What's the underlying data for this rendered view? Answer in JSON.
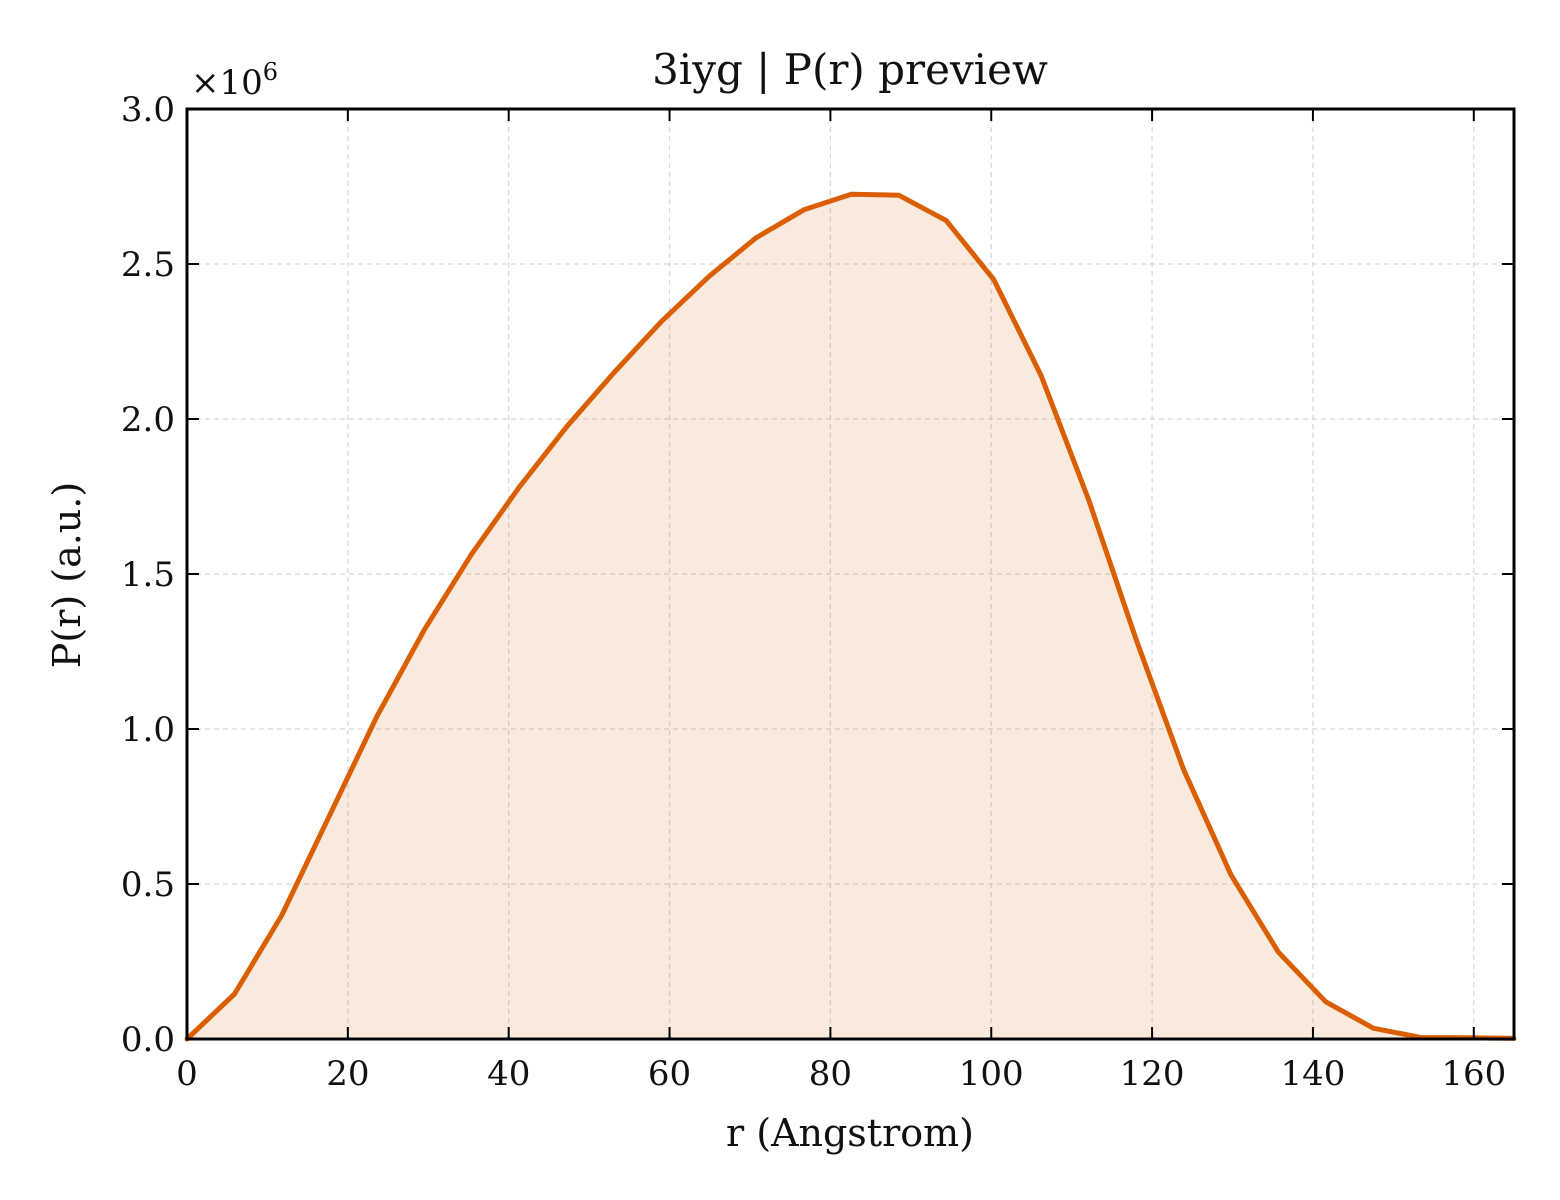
{
  "chart_data": {
    "type": "area",
    "title": "3iyg | P(r) preview",
    "xlabel": "r (Angstrom)",
    "ylabel": "P(r) (a.u.)",
    "y_multiplier_label": "×10",
    "y_multiplier_exp": "6",
    "y_scale": 1000000,
    "xlim": [
      0,
      165
    ],
    "ylim": [
      0,
      3000000
    ],
    "xticks": [
      0,
      20,
      40,
      60,
      80,
      100,
      120,
      140,
      160
    ],
    "xtick_labels": [
      "0",
      "20",
      "40",
      "60",
      "80",
      "100",
      "120",
      "140",
      "160"
    ],
    "yticks": [
      0,
      500000,
      1000000,
      1500000,
      2000000,
      2500000,
      3000000
    ],
    "ytick_labels": [
      "0.0",
      "0.5",
      "1.0",
      "1.5",
      "2.0",
      "2.5",
      "3.0"
    ],
    "grid": true,
    "legend": "none",
    "series": [
      {
        "color": "#d95f02",
        "fill_color": "#d95f02",
        "fill_opacity": 0.13,
        "x": [
          0,
          5.9,
          11.8,
          17.7,
          23.6,
          29.5,
          35.4,
          41.3,
          47.2,
          53.1,
          59.0,
          64.9,
          70.8,
          76.7,
          82.6,
          88.5,
          94.4,
          100.3,
          106.2,
          112.1,
          118.0,
          123.9,
          129.8,
          135.7,
          141.6,
          147.5,
          153.4,
          159.3,
          165.0
        ],
        "y": [
          0,
          145000,
          400000,
          720000,
          1040000,
          1320000,
          1565000,
          1780000,
          1975000,
          2150000,
          2315000,
          2460000,
          2585000,
          2675000,
          2725000,
          2722000,
          2640000,
          2450000,
          2140000,
          1740000,
          1290000,
          870000,
          530000,
          280000,
          120000,
          35000,
          5000,
          4000,
          2000
        ]
      }
    ]
  }
}
